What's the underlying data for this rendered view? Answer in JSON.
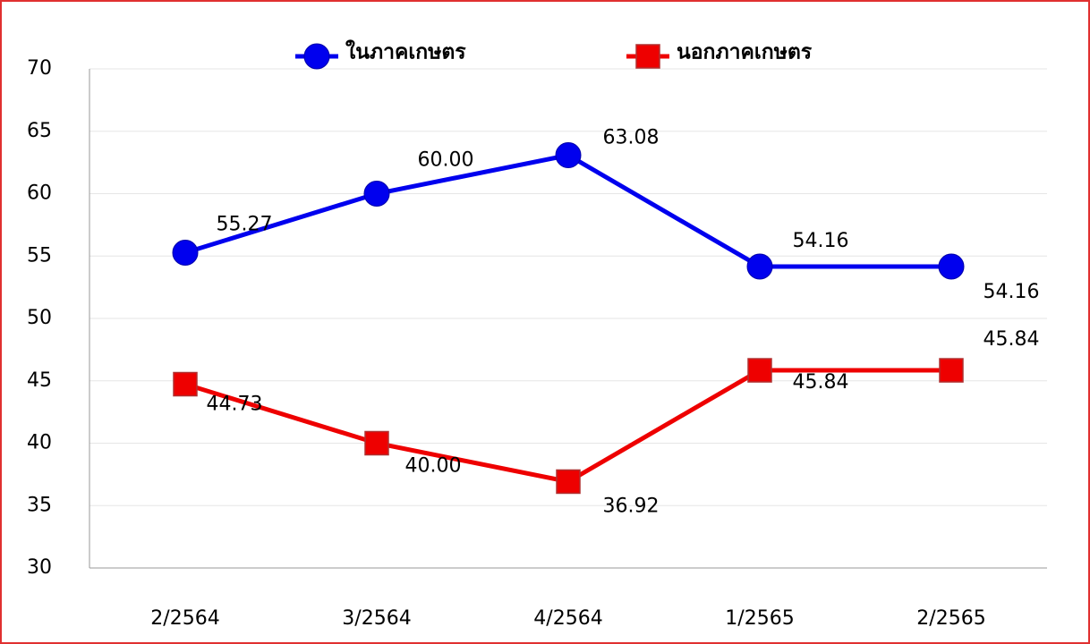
{
  "chart_data": {
    "type": "line",
    "categories": [
      "2/2564",
      "3/2564",
      "4/2564",
      "1/2565",
      "2/2565"
    ],
    "series": [
      {
        "name": "ในภาคเกษตร",
        "color": "#0000ee",
        "marker": "circle",
        "values": [
          55.27,
          60.0,
          63.08,
          54.16,
          54.16
        ],
        "value_labels": [
          "55.27",
          "60.00",
          "63.08",
          "54.16",
          "54.16"
        ]
      },
      {
        "name": "นอกภาคเกษตร",
        "color": "#ee0000",
        "marker": "square",
        "values": [
          44.73,
          40.0,
          36.92,
          45.84,
          45.84
        ],
        "value_labels": [
          "44.73",
          "40.00",
          "36.92",
          "45.84",
          "45.84"
        ]
      }
    ],
    "ylim": [
      30,
      70
    ],
    "yticks": [
      30,
      35,
      40,
      45,
      50,
      55,
      60,
      65,
      70
    ],
    "grid": true,
    "legend": "top"
  }
}
